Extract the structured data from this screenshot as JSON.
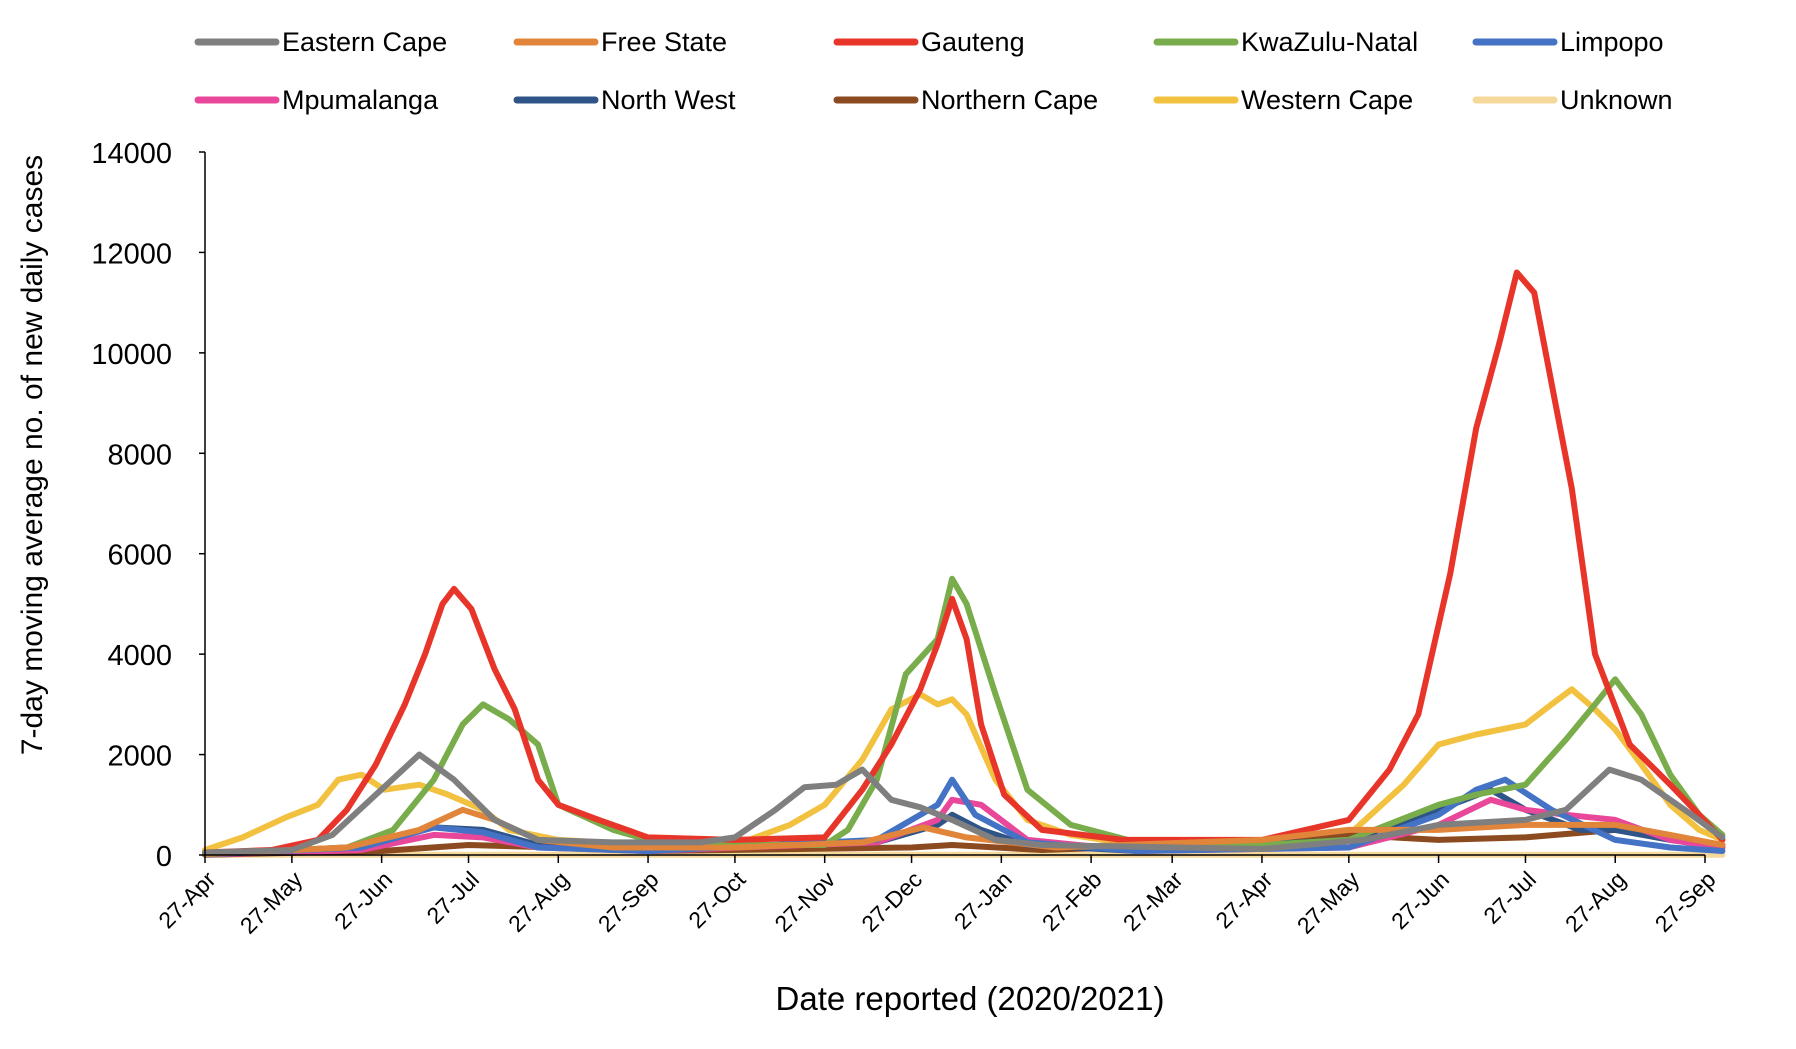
{
  "chart_data": {
    "type": "line",
    "title": "",
    "xlabel": "Date reported (2020/2021)",
    "ylabel": "7-day moving average no. of new daily cases",
    "ylim": [
      0,
      14000
    ],
    "yticks": [
      "0",
      "2000",
      "4000",
      "6000",
      "8000",
      "10000",
      "12000",
      "14000"
    ],
    "x_dates": [
      "2020-04-27",
      "2020-05-27",
      "2020-06-27",
      "2020-07-27",
      "2020-08-27",
      "2020-09-27",
      "2020-10-27",
      "2020-11-27",
      "2020-12-27",
      "2021-01-27",
      "2021-02-27",
      "2021-03-27",
      "2021-04-27",
      "2021-05-27",
      "2021-06-27",
      "2021-07-27",
      "2021-08-27",
      "2021-09-27"
    ],
    "x_tick_labels": [
      "27-Apr",
      "27-May",
      "27-Jun",
      "27-Jul",
      "27-Aug",
      "27-Sep",
      "27-Oct",
      "27-Nov",
      "27-Dec",
      "27-Jan",
      "27-Feb",
      "27-Mar",
      "27-Apr",
      "27-May",
      "27-Jun",
      "27-Jul",
      "27-Aug",
      "27-Sep"
    ],
    "grid": false,
    "legend_position": "top",
    "series": [
      {
        "name": "Eastern Cape",
        "color": "#7f7f7f",
        "points": [
          [
            "2020-04-27",
            50
          ],
          [
            "2020-05-27",
            100
          ],
          [
            "2020-06-10",
            400
          ],
          [
            "2020-06-25",
            1200
          ],
          [
            "2020-07-10",
            2000
          ],
          [
            "2020-07-22",
            1500
          ],
          [
            "2020-08-05",
            700
          ],
          [
            "2020-08-20",
            300
          ],
          [
            "2020-09-15",
            250
          ],
          [
            "2020-10-15",
            250
          ],
          [
            "2020-10-27",
            350
          ],
          [
            "2020-11-10",
            900
          ],
          [
            "2020-11-20",
            1350
          ],
          [
            "2020-12-01",
            1400
          ],
          [
            "2020-12-10",
            1700
          ],
          [
            "2020-12-20",
            1100
          ],
          [
            "2020-12-30",
            950
          ],
          [
            "2021-01-10",
            700
          ],
          [
            "2021-01-25",
            300
          ],
          [
            "2021-02-10",
            200
          ],
          [
            "2021-04-27",
            120
          ],
          [
            "2021-06-01",
            300
          ],
          [
            "2021-06-27",
            600
          ],
          [
            "2021-07-27",
            700
          ],
          [
            "2021-08-10",
            900
          ],
          [
            "2021-08-25",
            1700
          ],
          [
            "2021-09-05",
            1500
          ],
          [
            "2021-09-20",
            900
          ],
          [
            "2021-10-03",
            350
          ]
        ]
      },
      {
        "name": "Free State",
        "color": "#e0853a",
        "points": [
          [
            "2020-04-27",
            20
          ],
          [
            "2020-06-15",
            150
          ],
          [
            "2020-07-10",
            500
          ],
          [
            "2020-07-25",
            900
          ],
          [
            "2020-08-05",
            700
          ],
          [
            "2020-08-20",
            300
          ],
          [
            "2020-09-15",
            150
          ],
          [
            "2020-10-27",
            150
          ],
          [
            "2020-12-10",
            250
          ],
          [
            "2020-12-31",
            550
          ],
          [
            "2021-01-15",
            350
          ],
          [
            "2021-02-15",
            150
          ],
          [
            "2021-04-27",
            300
          ],
          [
            "2021-05-27",
            500
          ],
          [
            "2021-06-27",
            500
          ],
          [
            "2021-07-27",
            600
          ],
          [
            "2021-08-27",
            600
          ],
          [
            "2021-09-15",
            400
          ],
          [
            "2021-10-03",
            200
          ]
        ]
      },
      {
        "name": "Gauteng",
        "color": "#e8352a",
        "points": [
          [
            "2020-04-27",
            50
          ],
          [
            "2020-05-20",
            100
          ],
          [
            "2020-06-05",
            300
          ],
          [
            "2020-06-15",
            900
          ],
          [
            "2020-06-25",
            1800
          ],
          [
            "2020-07-05",
            3000
          ],
          [
            "2020-07-12",
            4000
          ],
          [
            "2020-07-18",
            5000
          ],
          [
            "2020-07-22",
            5300
          ],
          [
            "2020-07-28",
            4900
          ],
          [
            "2020-08-05",
            3700
          ],
          [
            "2020-08-12",
            2900
          ],
          [
            "2020-08-20",
            1500
          ],
          [
            "2020-08-27",
            1000
          ],
          [
            "2020-09-10",
            700
          ],
          [
            "2020-09-27",
            350
          ],
          [
            "2020-10-27",
            300
          ],
          [
            "2020-11-27",
            350
          ],
          [
            "2020-12-10",
            1300
          ],
          [
            "2020-12-20",
            2200
          ],
          [
            "2020-12-30",
            3300
          ],
          [
            "2021-01-05",
            4200
          ],
          [
            "2021-01-10",
            5100
          ],
          [
            "2021-01-15",
            4300
          ],
          [
            "2021-01-20",
            2600
          ],
          [
            "2021-01-28",
            1200
          ],
          [
            "2021-02-10",
            500
          ],
          [
            "2021-03-10",
            300
          ],
          [
            "2021-04-27",
            300
          ],
          [
            "2021-05-27",
            700
          ],
          [
            "2021-06-10",
            1700
          ],
          [
            "2021-06-20",
            2800
          ],
          [
            "2021-07-01",
            5600
          ],
          [
            "2021-07-10",
            8500
          ],
          [
            "2021-07-18",
            10200
          ],
          [
            "2021-07-24",
            11600
          ],
          [
            "2021-07-30",
            11200
          ],
          [
            "2021-08-05",
            9400
          ],
          [
            "2021-08-12",
            7300
          ],
          [
            "2021-08-20",
            4000
          ],
          [
            "2021-09-01",
            2200
          ],
          [
            "2021-09-15",
            1400
          ],
          [
            "2021-09-25",
            800
          ],
          [
            "2021-10-03",
            300
          ]
        ]
      },
      {
        "name": "KwaZulu-Natal",
        "color": "#79ac4b",
        "points": [
          [
            "2020-04-27",
            20
          ],
          [
            "2020-06-15",
            150
          ],
          [
            "2020-07-01",
            500
          ],
          [
            "2020-07-15",
            1500
          ],
          [
            "2020-07-25",
            2600
          ],
          [
            "2020-08-01",
            3000
          ],
          [
            "2020-08-10",
            2700
          ],
          [
            "2020-08-20",
            2200
          ],
          [
            "2020-08-27",
            1000
          ],
          [
            "2020-09-15",
            500
          ],
          [
            "2020-09-27",
            300
          ],
          [
            "2020-10-27",
            200
          ],
          [
            "2020-11-27",
            200
          ],
          [
            "2020-12-05",
            500
          ],
          [
            "2020-12-15",
            1500
          ],
          [
            "2020-12-25",
            3600
          ],
          [
            "2021-01-05",
            4300
          ],
          [
            "2021-01-10",
            5500
          ],
          [
            "2021-01-15",
            5000
          ],
          [
            "2021-01-25",
            3200
          ],
          [
            "2021-02-05",
            1300
          ],
          [
            "2021-02-20",
            600
          ],
          [
            "2021-03-15",
            250
          ],
          [
            "2021-04-27",
            200
          ],
          [
            "2021-05-27",
            300
          ],
          [
            "2021-06-27",
            1000
          ],
          [
            "2021-07-10",
            1200
          ],
          [
            "2021-07-27",
            1400
          ],
          [
            "2021-08-10",
            2300
          ],
          [
            "2021-08-20",
            3000
          ],
          [
            "2021-08-27",
            3500
          ],
          [
            "2021-09-05",
            2800
          ],
          [
            "2021-09-15",
            1600
          ],
          [
            "2021-09-25",
            800
          ],
          [
            "2021-10-03",
            400
          ]
        ]
      },
      {
        "name": "Limpopo",
        "color": "#4472c4",
        "points": [
          [
            "2020-04-27",
            10
          ],
          [
            "2020-06-20",
            150
          ],
          [
            "2020-07-15",
            550
          ],
          [
            "2020-08-01",
            450
          ],
          [
            "2020-08-20",
            150
          ],
          [
            "2020-09-27",
            80
          ],
          [
            "2020-12-15",
            300
          ],
          [
            "2021-01-05",
            1000
          ],
          [
            "2021-01-10",
            1500
          ],
          [
            "2021-01-18",
            800
          ],
          [
            "2021-02-05",
            250
          ],
          [
            "2021-03-15",
            80
          ],
          [
            "2021-05-27",
            150
          ],
          [
            "2021-06-27",
            800
          ],
          [
            "2021-07-10",
            1300
          ],
          [
            "2021-07-20",
            1500
          ],
          [
            "2021-08-05",
            900
          ],
          [
            "2021-08-27",
            300
          ],
          [
            "2021-09-15",
            150
          ],
          [
            "2021-10-03",
            80
          ]
        ]
      },
      {
        "name": "Mpumalanga",
        "color": "#e8479a",
        "points": [
          [
            "2020-04-27",
            10
          ],
          [
            "2020-06-20",
            100
          ],
          [
            "2020-07-15",
            400
          ],
          [
            "2020-08-01",
            350
          ],
          [
            "2020-08-20",
            150
          ],
          [
            "2020-09-27",
            80
          ],
          [
            "2020-12-15",
            250
          ],
          [
            "2021-01-05",
            700
          ],
          [
            "2021-01-10",
            1100
          ],
          [
            "2021-01-20",
            1000
          ],
          [
            "2021-02-05",
            300
          ],
          [
            "2021-03-15",
            80
          ],
          [
            "2021-05-27",
            150
          ],
          [
            "2021-06-27",
            600
          ],
          [
            "2021-07-15",
            1100
          ],
          [
            "2021-07-27",
            900
          ],
          [
            "2021-08-10",
            800
          ],
          [
            "2021-08-27",
            700
          ],
          [
            "2021-09-15",
            300
          ],
          [
            "2021-10-03",
            150
          ]
        ]
      },
      {
        "name": "North West",
        "color": "#2f5487",
        "points": [
          [
            "2020-04-27",
            10
          ],
          [
            "2020-06-15",
            150
          ],
          [
            "2020-07-15",
            550
          ],
          [
            "2020-08-01",
            500
          ],
          [
            "2020-08-20",
            200
          ],
          [
            "2020-09-27",
            100
          ],
          [
            "2020-12-15",
            250
          ],
          [
            "2021-01-05",
            600
          ],
          [
            "2021-01-10",
            800
          ],
          [
            "2021-01-20",
            500
          ],
          [
            "2021-02-05",
            200
          ],
          [
            "2021-03-15",
            80
          ],
          [
            "2021-05-27",
            300
          ],
          [
            "2021-06-27",
            900
          ],
          [
            "2021-07-15",
            1300
          ],
          [
            "2021-07-27",
            900
          ],
          [
            "2021-08-15",
            500
          ],
          [
            "2021-08-27",
            500
          ],
          [
            "2021-09-15",
            300
          ],
          [
            "2021-10-03",
            150
          ]
        ]
      },
      {
        "name": "Northern Cape",
        "color": "#8b4a20",
        "points": [
          [
            "2020-04-27",
            5
          ],
          [
            "2020-06-27",
            80
          ],
          [
            "2020-07-27",
            200
          ],
          [
            "2020-08-27",
            150
          ],
          [
            "2020-09-27",
            80
          ],
          [
            "2020-12-27",
            150
          ],
          [
            "2021-01-10",
            200
          ],
          [
            "2021-02-10",
            100
          ],
          [
            "2021-04-27",
            250
          ],
          [
            "2021-05-27",
            400
          ],
          [
            "2021-06-27",
            300
          ],
          [
            "2021-07-27",
            350
          ],
          [
            "2021-08-27",
            500
          ],
          [
            "2021-09-15",
            350
          ],
          [
            "2021-10-03",
            200
          ]
        ]
      },
      {
        "name": "Western Cape",
        "color": "#f2c140",
        "points": [
          [
            "2020-04-27",
            100
          ],
          [
            "2020-05-10",
            350
          ],
          [
            "2020-05-25",
            750
          ],
          [
            "2020-06-05",
            1000
          ],
          [
            "2020-06-12",
            1500
          ],
          [
            "2020-06-20",
            1600
          ],
          [
            "2020-06-28",
            1300
          ],
          [
            "2020-07-10",
            1400
          ],
          [
            "2020-07-20",
            1200
          ],
          [
            "2020-08-01",
            900
          ],
          [
            "2020-08-10",
            500
          ],
          [
            "2020-08-27",
            300
          ],
          [
            "2020-09-27",
            200
          ],
          [
            "2020-10-27",
            200
          ],
          [
            "2020-11-15",
            600
          ],
          [
            "2020-11-27",
            1000
          ],
          [
            "2020-12-10",
            1900
          ],
          [
            "2020-12-20",
            2900
          ],
          [
            "2020-12-30",
            3200
          ],
          [
            "2021-01-05",
            3000
          ],
          [
            "2021-01-10",
            3100
          ],
          [
            "2021-01-15",
            2800
          ],
          [
            "2021-01-25",
            1500
          ],
          [
            "2021-02-05",
            700
          ],
          [
            "2021-02-20",
            400
          ],
          [
            "2021-03-15",
            200
          ],
          [
            "2021-04-27",
            150
          ],
          [
            "2021-05-27",
            400
          ],
          [
            "2021-06-15",
            1400
          ],
          [
            "2021-06-27",
            2200
          ],
          [
            "2021-07-10",
            2400
          ],
          [
            "2021-07-27",
            2600
          ],
          [
            "2021-08-05",
            3000
          ],
          [
            "2021-08-12",
            3300
          ],
          [
            "2021-08-20",
            2900
          ],
          [
            "2021-08-27",
            2500
          ],
          [
            "2021-09-05",
            1800
          ],
          [
            "2021-09-15",
            1000
          ],
          [
            "2021-09-25",
            500
          ],
          [
            "2021-10-03",
            300
          ]
        ]
      },
      {
        "name": "Unknown",
        "color": "#f4d99a",
        "points": [
          [
            "2020-04-27",
            5
          ],
          [
            "2021-10-03",
            5
          ]
        ]
      }
    ]
  }
}
